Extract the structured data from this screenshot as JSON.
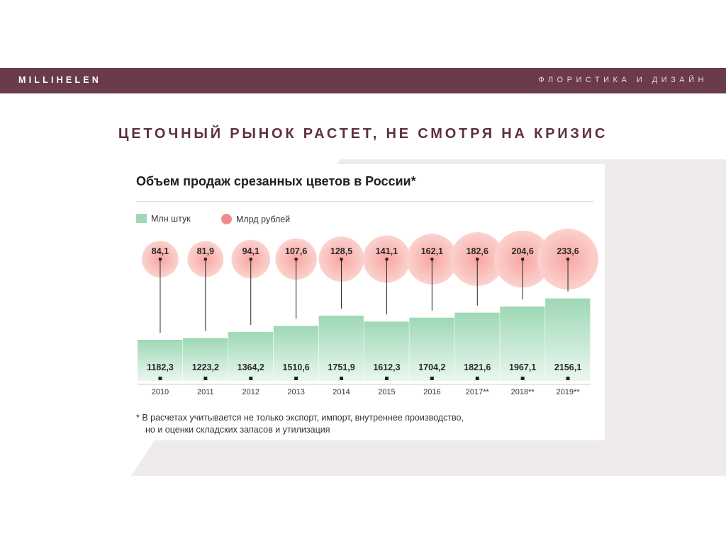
{
  "header": {
    "brand": "MILLIHELEN",
    "tagline": "ФЛОРИСТИКА И ДИЗАЙН"
  },
  "slide": {
    "title": "ЦЕТОЧНЫЙ РЫНОК РАСТЕТ, НЕ СМОТРЯ НА КРИЗИС"
  },
  "colors": {
    "bar": "#6a3b49",
    "bar_fill_top": "#9ed8b5",
    "bar_fill_bottom": "#eaf7ef",
    "bubble_center": "#f8a6a3",
    "bubble_edge": "#fbd2ce",
    "title": "#5d3040"
  },
  "chart_data": {
    "type": "bar",
    "title": "Объем продаж срезанных цветов в России*",
    "categories": [
      "2010",
      "2011",
      "2012",
      "2013",
      "2014",
      "2015",
      "2016",
      "2017**",
      "2018**",
      "2019**"
    ],
    "series": [
      {
        "name": "Млн штук",
        "values": [
          1182.3,
          1223.2,
          1364.2,
          1510.6,
          1751.9,
          1612.3,
          1704.2,
          1821.6,
          1967.1,
          2156.1
        ]
      },
      {
        "name": "Млрд рублей",
        "values": [
          84.1,
          81.9,
          94.1,
          107.6,
          128.5,
          141.1,
          162.1,
          182.6,
          204.6,
          233.6
        ]
      }
    ],
    "value_labels_pcs": [
      "1182,3",
      "1223,2",
      "1364,2",
      "1510,6",
      "1751,9",
      "1612,3",
      "1704,2",
      "1821,6",
      "1967,1",
      "2156,1"
    ],
    "value_labels_rub": [
      "84,1",
      "81,9",
      "94,1",
      "107,6",
      "128,5",
      "141,1",
      "162,1",
      "182,6",
      "204,6",
      "233,6"
    ],
    "legend": [
      "Млн штук",
      "Млрд рублей"
    ],
    "legend_position": "top-left",
    "grid": false,
    "footnote": [
      "* В расчетах учитывается не только экспорт, импорт, внутреннее производство,",
      "но и оценки складских запасов и утилизация"
    ]
  }
}
